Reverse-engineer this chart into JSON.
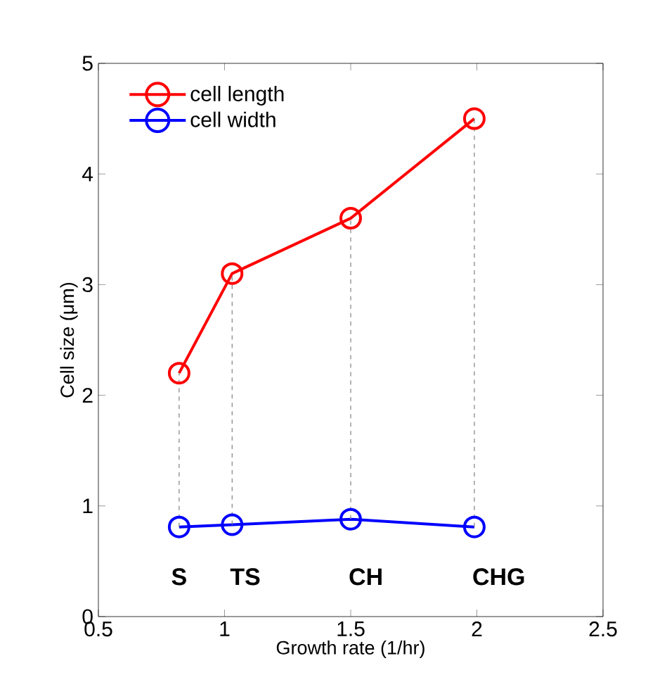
{
  "chart_data": {
    "type": "line",
    "xlabel": "Growth rate (1/hr)",
    "ylabel": "Cell size (μm)",
    "xlim": [
      0.5,
      2.5
    ],
    "xticks": [
      0.5,
      1,
      1.5,
      2,
      2.5
    ],
    "ylim": [
      0,
      5
    ],
    "yticks": [
      0,
      1,
      2,
      3,
      4,
      5
    ],
    "marker": "circle",
    "legend": "top left",
    "grid": false,
    "series": [
      {
        "name": "cell length",
        "color": "#ff0000",
        "x": [
          0.82,
          1.03,
          1.5,
          1.99
        ],
        "values": [
          2.2,
          3.1,
          3.6,
          4.5
        ]
      },
      {
        "name": "cell width",
        "color": "#0000ff",
        "x": [
          0.82,
          1.03,
          1.5,
          1.99
        ],
        "values": [
          0.81,
          0.83,
          0.88,
          0.81
        ]
      },
      {
        "type": "line",
        "color": "#808080",
        "line_style": "dashed",
        "marker": "none",
        "x": [
          0.82,
          0.82
        ],
        "values": [
          0.81,
          2.2
        ]
      },
      {
        "type": "line",
        "color": "#808080",
        "line_style": "dashed",
        "marker": "none",
        "x": [
          1.03,
          1.03
        ],
        "values": [
          0.83,
          3.1
        ]
      },
      {
        "type": "line",
        "color": "#808080",
        "line_style": "dashed",
        "marker": "none",
        "x": [
          1.5,
          1.5
        ],
        "values": [
          0.88,
          3.6
        ]
      },
      {
        "type": "line",
        "color": "#808080",
        "line_style": "dashed",
        "marker": "none",
        "x": [
          1.99,
          1.99
        ],
        "values": [
          0.81,
          4.5
        ]
      }
    ],
    "annotations": [
      "S",
      "TS",
      "CH",
      "CHG"
    ]
  }
}
